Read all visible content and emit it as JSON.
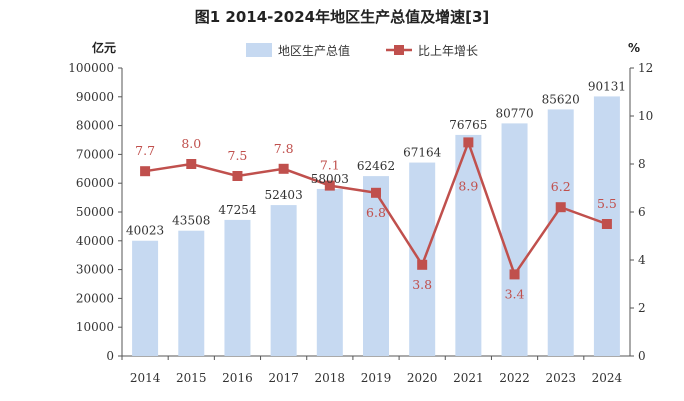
{
  "title": "图1  2014-2024年地区生产总值及增速[3]",
  "chart_data": {
    "type": "bar",
    "categories": [
      "2014",
      "2015",
      "2016",
      "2017",
      "2018",
      "2019",
      "2020",
      "2021",
      "2022",
      "2023",
      "2024"
    ],
    "series": [
      {
        "name": "地区生产总值",
        "type": "bar",
        "axis": "left",
        "values": [
          40023,
          43508,
          47254,
          52403,
          58003,
          62462,
          67164,
          76765,
          80770,
          85620,
          90131
        ],
        "color": "#c6d9f1"
      },
      {
        "name": "比上年增长",
        "type": "line",
        "axis": "right",
        "values": [
          7.7,
          8.0,
          7.5,
          7.8,
          7.1,
          6.8,
          3.8,
          8.9,
          3.4,
          6.2,
          5.5
        ],
        "color": "#c0504d"
      }
    ],
    "y_left": {
      "unit": "亿元",
      "min": 0,
      "max": 100000,
      "step": 10000
    },
    "y_right": {
      "unit": "%",
      "min": 0,
      "max": 12,
      "step": 2
    },
    "legend_position": "top",
    "grid": false
  }
}
